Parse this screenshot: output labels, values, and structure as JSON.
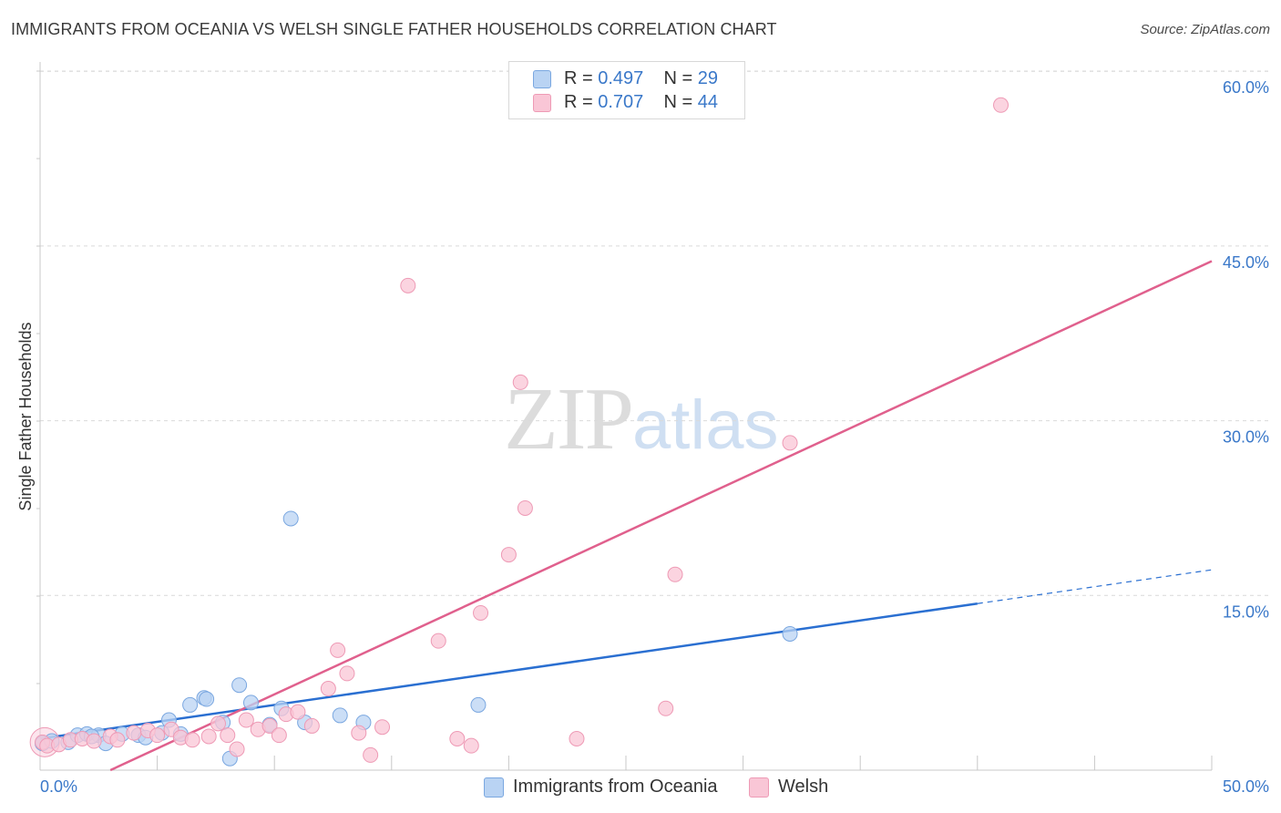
{
  "title": "IMMIGRANTS FROM OCEANIA VS WELSH SINGLE FATHER HOUSEHOLDS CORRELATION CHART",
  "source": "Source: ZipAtlas.com",
  "watermark": {
    "part1": "ZIP",
    "part2": "atlas"
  },
  "legend": [
    {
      "r_label": "R =",
      "r_value": "0.497",
      "n_label": "N =",
      "n_value": "29"
    },
    {
      "r_label": "R =",
      "r_value": "0.707",
      "n_label": "N =",
      "n_value": "44"
    }
  ],
  "bottom_legend": [
    "Immigrants from Oceania",
    "Welsh"
  ],
  "colors": {
    "blue_fill": "#b9d3f3",
    "blue_stroke": "#7aa7e0",
    "blue_line": "#2a6fd1",
    "pink_fill": "#f9c6d6",
    "pink_stroke": "#ee9ab5",
    "pink_line": "#e0608d",
    "tick_text": "#3a78c9",
    "grid": "#d9d9d9"
  },
  "chart_data": {
    "type": "scatter",
    "title": "IMMIGRANTS FROM OCEANIA VS WELSH SINGLE FATHER HOUSEHOLDS CORRELATION CHART",
    "xlabel": "",
    "ylabel": "Single Father Households",
    "xlim": [
      0,
      50
    ],
    "ylim": [
      0,
      62
    ],
    "x_tick_labels": [
      "0.0%",
      "50.0%"
    ],
    "y_ticks": [
      15,
      30,
      45,
      60
    ],
    "y_tick_labels": [
      "15.0%",
      "30.0%",
      "45.0%",
      "60.0%"
    ],
    "grid": "horizontal dashed",
    "legend_position": "top-center",
    "series": [
      {
        "name": "Immigrants from Oceania",
        "color": "#b9d3f3",
        "points": [
          [
            0.1,
            2.3
          ],
          [
            0.5,
            2.5
          ],
          [
            1.2,
            2.4
          ],
          [
            1.6,
            3.0
          ],
          [
            2.0,
            3.1
          ],
          [
            2.5,
            3.0
          ],
          [
            2.8,
            2.3
          ],
          [
            3.5,
            3.1
          ],
          [
            4.2,
            3.0
          ],
          [
            4.5,
            2.8
          ],
          [
            5.2,
            3.2
          ],
          [
            5.5,
            4.3
          ],
          [
            6.0,
            3.1
          ],
          [
            6.4,
            5.6
          ],
          [
            7.0,
            6.2
          ],
          [
            7.1,
            6.1
          ],
          [
            7.8,
            4.1
          ],
          [
            8.1,
            1.0
          ],
          [
            8.5,
            7.3
          ],
          [
            9.0,
            5.8
          ],
          [
            9.8,
            3.9
          ],
          [
            10.3,
            5.3
          ],
          [
            10.7,
            21.6
          ],
          [
            11.3,
            4.1
          ],
          [
            12.8,
            4.7
          ],
          [
            13.8,
            4.1
          ],
          [
            18.7,
            5.6
          ],
          [
            32.0,
            11.7
          ],
          [
            2.2,
            2.9
          ]
        ],
        "trend": {
          "x": [
            0.0,
            40.0
          ],
          "y": [
            2.7,
            14.3
          ],
          "dashed_extension": {
            "x": [
              40.0,
              50.0
            ],
            "y": [
              14.3,
              17.2
            ]
          }
        }
      },
      {
        "name": "Welsh",
        "color": "#f9c6d6",
        "points": [
          [
            0.1,
            2.4
          ],
          [
            0.3,
            2.1
          ],
          [
            0.8,
            2.2
          ],
          [
            1.3,
            2.6
          ],
          [
            1.8,
            2.7
          ],
          [
            2.3,
            2.5
          ],
          [
            3.0,
            2.9
          ],
          [
            3.3,
            2.6
          ],
          [
            4.0,
            3.2
          ],
          [
            4.6,
            3.4
          ],
          [
            5.0,
            3.0
          ],
          [
            5.6,
            3.5
          ],
          [
            6.0,
            2.8
          ],
          [
            6.5,
            2.6
          ],
          [
            7.2,
            2.9
          ],
          [
            7.6,
            4.0
          ],
          [
            8.0,
            3.0
          ],
          [
            8.4,
            1.8
          ],
          [
            8.8,
            4.3
          ],
          [
            9.3,
            3.5
          ],
          [
            9.8,
            3.8
          ],
          [
            10.2,
            3.0
          ],
          [
            10.5,
            4.8
          ],
          [
            11.0,
            5.0
          ],
          [
            11.6,
            3.8
          ],
          [
            12.3,
            7.0
          ],
          [
            12.7,
            10.3
          ],
          [
            13.1,
            8.3
          ],
          [
            13.6,
            3.2
          ],
          [
            14.1,
            1.3
          ],
          [
            14.6,
            3.7
          ],
          [
            15.7,
            41.6
          ],
          [
            17.0,
            11.1
          ],
          [
            17.8,
            2.7
          ],
          [
            18.4,
            2.1
          ],
          [
            18.8,
            13.5
          ],
          [
            20.0,
            18.5
          ],
          [
            20.5,
            33.3
          ],
          [
            20.7,
            22.5
          ],
          [
            22.9,
            2.7
          ],
          [
            26.7,
            5.3
          ],
          [
            27.1,
            16.8
          ],
          [
            32.0,
            28.1
          ],
          [
            41.0,
            57.1
          ]
        ],
        "trend": {
          "x": [
            3.0,
            50.0
          ],
          "y": [
            0.0,
            43.7
          ]
        }
      }
    ]
  }
}
